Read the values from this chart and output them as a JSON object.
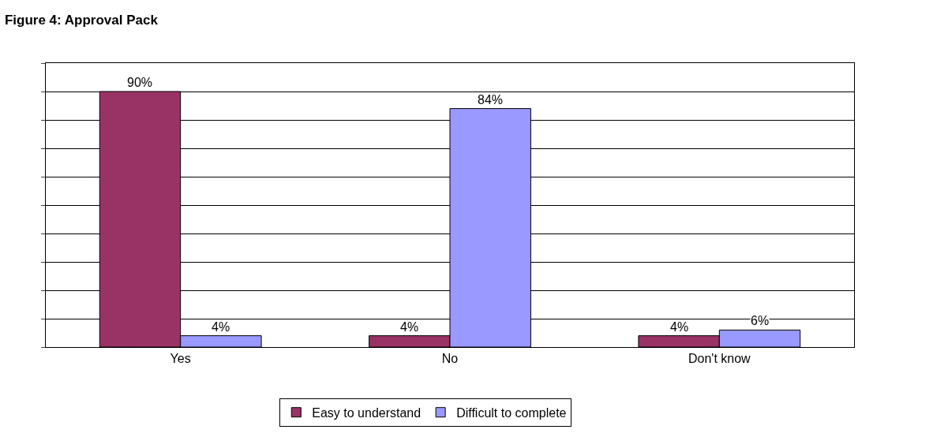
{
  "chart_data": {
    "type": "bar",
    "title": "Figure 4: Approval Pack",
    "categories": [
      "Yes",
      "No",
      "Don't know"
    ],
    "series": [
      {
        "name": "Easy to understand",
        "color": "#993366",
        "values": [
          90,
          4,
          4
        ],
        "value_labels": [
          "90%",
          "4%",
          "4%"
        ]
      },
      {
        "name": "Difficult to complete",
        "color": "#9999ff",
        "values": [
          4,
          84,
          6
        ],
        "value_labels": [
          "4%",
          "84%",
          "6%"
        ]
      }
    ],
    "ylim": [
      0,
      100
    ],
    "yticks": [
      {
        "value": 0,
        "label": null
      },
      {
        "value": 10,
        "label": null
      },
      {
        "value": 20,
        "label": null
      },
      {
        "value": 30,
        "label": null
      },
      {
        "value": 40,
        "label": null
      },
      {
        "value": 50,
        "label": null
      },
      {
        "value": 60,
        "label": null
      },
      {
        "value": 70,
        "label": null
      },
      {
        "value": 80,
        "label": null
      },
      {
        "value": 90,
        "label": null
      },
      {
        "value": 100,
        "label": null
      }
    ],
    "tick_labels": "x",
    "grid": "y",
    "legend": "bottom"
  }
}
